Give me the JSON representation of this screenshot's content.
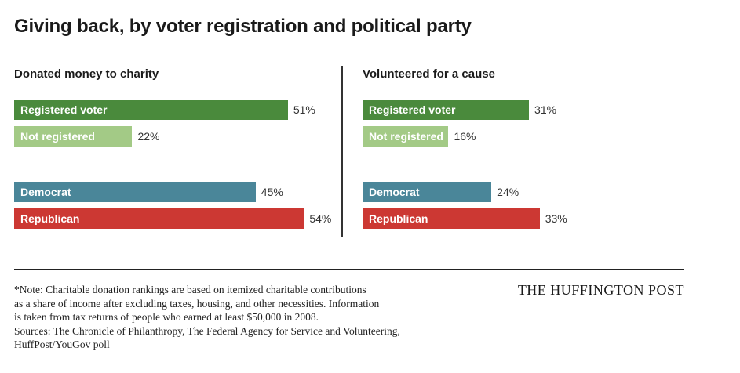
{
  "title": "Giving back, by voter registration and political party",
  "colors": {
    "registered": "#4a8a3c",
    "not_registered": "#a3ca86",
    "democrat": "#4a8699",
    "republican": "#cc3833"
  },
  "chart_data": [
    {
      "type": "bar",
      "orientation": "horizontal",
      "title": "Donated money to charity",
      "categories": [
        "Registered voter",
        "Not registered",
        "Democrat",
        "Republican"
      ],
      "values": [
        51,
        22,
        45,
        54
      ],
      "value_labels": [
        "51%",
        "22%",
        "45%",
        "54%"
      ],
      "unit": "%",
      "xlim": [
        0,
        60
      ]
    },
    {
      "type": "bar",
      "orientation": "horizontal",
      "title": "Volunteered for a cause",
      "categories": [
        "Registered voter",
        "Not registered",
        "Democrat",
        "Republican"
      ],
      "values": [
        31,
        16,
        24,
        33
      ],
      "value_labels": [
        "31%",
        "16%",
        "24%",
        "33%"
      ],
      "unit": "%",
      "xlim": [
        0,
        60
      ]
    }
  ],
  "footnote": {
    "lines": [
      "*Note: Charitable donation rankings are based on itemized charitable contributions",
      "as a share of income after excluding taxes, housing, and other necessities. Information",
      "is taken from tax returns of people who earned at least $50,000 in 2008.",
      "Sources: The Chronicle of Philanthropy, The Federal Agency for Service and Volunteering,",
      "HuffPost/YouGov poll"
    ]
  },
  "brand": "THE HUFFINGTON POST"
}
